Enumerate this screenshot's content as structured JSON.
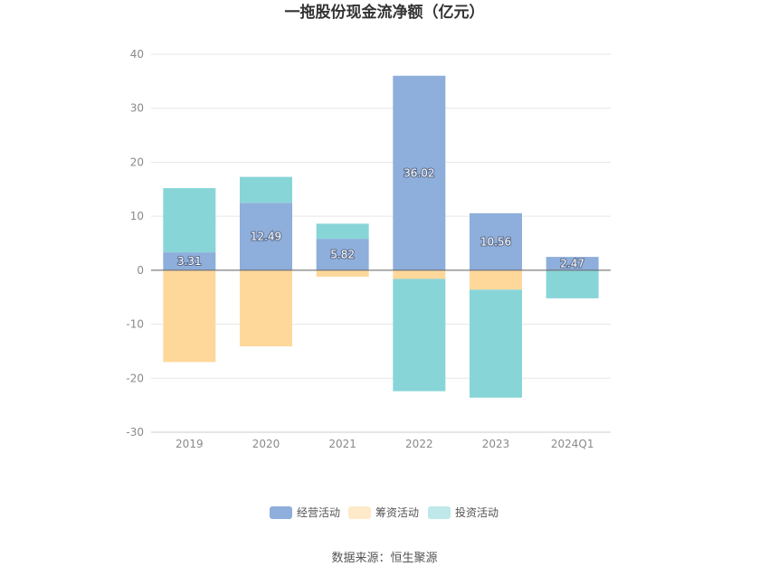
{
  "chart_data": {
    "type": "bar",
    "stacked": true,
    "title": "一拖股份现金流净额（亿元）",
    "xlabel": "",
    "ylabel": "",
    "ylim": [
      -30,
      40
    ],
    "yticks": [
      40,
      30,
      20,
      10,
      0,
      -10,
      -20,
      -30
    ],
    "grid": true,
    "legend_position": "bottom",
    "categories": [
      "2019",
      "2020",
      "2021",
      "2022",
      "2023",
      "2024Q1"
    ],
    "series": [
      {
        "name": "经营活动",
        "color": "#8eaedb",
        "values": [
          3.31,
          12.49,
          5.82,
          36.02,
          10.56,
          2.47
        ],
        "show_labels": true
      },
      {
        "name": "筹资活动",
        "color": "#fed89b",
        "values": [
          -17.0,
          -14.1,
          -1.2,
          -1.6,
          -3.6,
          0.0
        ],
        "show_labels": false
      },
      {
        "name": "投资活动",
        "color": "#88d5d8",
        "values": [
          11.9,
          4.8,
          2.8,
          -20.8,
          -20.0,
          -5.2
        ],
        "show_labels": false
      }
    ],
    "data_labels": [
      "3.31",
      "12.49",
      "5.82",
      "36.02",
      "10.56",
      "2.47"
    ]
  },
  "source": "数据来源：恒生聚源"
}
